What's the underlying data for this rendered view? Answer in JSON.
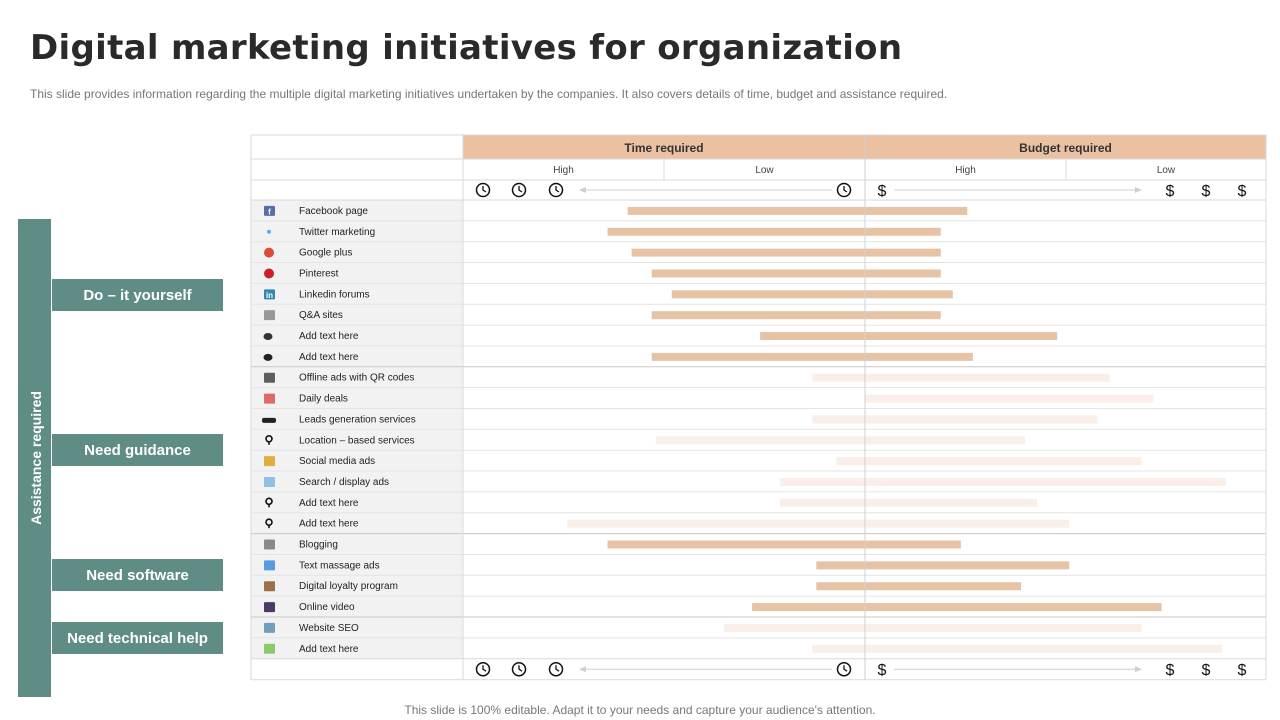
{
  "title": "Digital marketing initiatives for organization",
  "subtitle": "This slide provides information regarding the multiple digital marketing initiatives undertaken by the companies. It also covers details of time, budget and assistance required.",
  "footer": "This slide is 100% editable. Adapt it to your needs and capture your audience's attention.",
  "assistance": {
    "label": "Assistance required",
    "groups": [
      "Do – it yourself",
      "Need guidance",
      "Need software",
      "Need technical help"
    ]
  },
  "colors": {
    "header": "#ebc1a2",
    "bar_dark": "#e7c3a6",
    "bar_light": "#faeee8",
    "group": "#5f8d86"
  },
  "chart_data": {
    "type": "bar",
    "orientation": "horizontal-range",
    "headers": {
      "time": "Time required",
      "budget": "Budget required"
    },
    "subheaders": [
      "High",
      "Low",
      "High",
      "Low"
    ],
    "icons": {
      "time_row": [
        "clock-icon",
        "clock-icon",
        "clock-icon",
        "clock-icon"
      ],
      "budget_row": [
        "dollar-icon",
        "dollar-icon",
        "dollar-icon",
        "dollar-icon"
      ]
    },
    "scale": {
      "left": "Time required: High",
      "center": "Time required: Low | Budget required: High",
      "right": "Budget required: Low"
    },
    "xlim": [
      0,
      100
    ],
    "rows": [
      {
        "label": "Facebook page",
        "icon": "facebook-icon",
        "start": 20.5,
        "end": 62.8,
        "shade": "dark"
      },
      {
        "label": "Twitter marketing",
        "icon": "twitter-icon",
        "start": 18.0,
        "end": 59.5,
        "shade": "dark"
      },
      {
        "label": "Google plus",
        "icon": "google-plus-icon",
        "start": 21.0,
        "end": 59.5,
        "shade": "dark"
      },
      {
        "label": "Pinterest",
        "icon": "pinterest-icon",
        "start": 23.5,
        "end": 59.5,
        "shade": "dark"
      },
      {
        "label": "Linkedin forums",
        "icon": "linkedin-icon",
        "start": 26.0,
        "end": 61.0,
        "shade": "dark"
      },
      {
        "label": "Q&A  sites",
        "icon": "qa-icon",
        "start": 23.5,
        "end": 59.5,
        "shade": "dark"
      },
      {
        "label": "Add  text here",
        "icon": "chat-icon",
        "start": 37.0,
        "end": 74.0,
        "shade": "dark"
      },
      {
        "label": "Add  text here",
        "icon": "chat-bubbles-icon",
        "start": 23.5,
        "end": 63.5,
        "shade": "dark"
      },
      {
        "label": "Offline ads with QR codes",
        "icon": "qr-code-icon",
        "start": 43.5,
        "end": 80.5,
        "shade": "light"
      },
      {
        "label": "Daily deals",
        "icon": "tag-icon",
        "start": 50.0,
        "end": 86.0,
        "shade": "light"
      },
      {
        "label": "Leads generation services",
        "icon": "people-icon",
        "start": 43.5,
        "end": 79.0,
        "shade": "light"
      },
      {
        "label": "Location – based services",
        "icon": "location-icon",
        "start": 24.0,
        "end": 70.0,
        "shade": "light"
      },
      {
        "label": "Social  media ads",
        "icon": "social-icon",
        "start": 46.5,
        "end": 84.5,
        "shade": "light"
      },
      {
        "label": "Search / display ads",
        "icon": "search-ads-icon",
        "start": 39.5,
        "end": 95.0,
        "shade": "light"
      },
      {
        "label": "Add  text here",
        "icon": "location-icon",
        "start": 39.5,
        "end": 71.5,
        "shade": "light"
      },
      {
        "label": "Add  text here",
        "icon": "location-icon",
        "start": 13.0,
        "end": 75.5,
        "shade": "light"
      },
      {
        "label": "Blogging",
        "icon": "blog-icon",
        "start": 18.0,
        "end": 62.0,
        "shade": "dark"
      },
      {
        "label": "Text  massage ads",
        "icon": "message-icon",
        "start": 44.0,
        "end": 75.5,
        "shade": "dark"
      },
      {
        "label": "Digital loyalty program",
        "icon": "loyalty-icon",
        "start": 44.0,
        "end": 69.5,
        "shade": "dark"
      },
      {
        "label": "Online video",
        "icon": "video-icon",
        "start": 36.0,
        "end": 87.0,
        "shade": "dark"
      },
      {
        "label": "Website SEO",
        "icon": "seo-icon",
        "start": 32.5,
        "end": 84.5,
        "shade": "light"
      },
      {
        "label": "Add  text here",
        "icon": "android-icon",
        "start": 43.5,
        "end": 94.5,
        "shade": "light"
      }
    ]
  }
}
